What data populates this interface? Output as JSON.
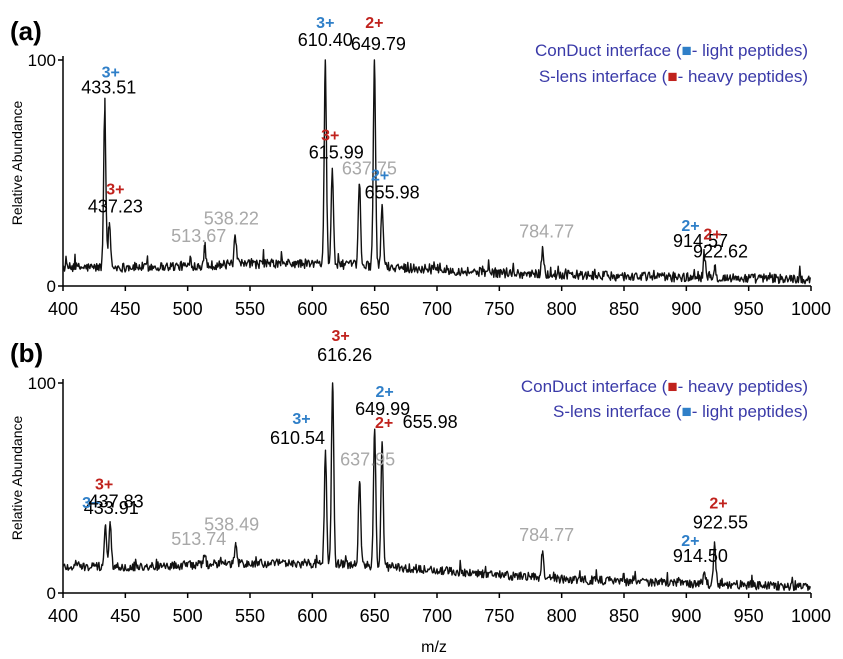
{
  "xlabel": "m/z",
  "colors": {
    "blue": "#2f7fc8",
    "red": "#c0221d",
    "gray": "#a8a8a8",
    "legend_text": "#3a3aa8",
    "trace": "#111111"
  },
  "chart_data": [
    {
      "type": "line",
      "panel_label": "(a)",
      "ylabel": "Relative Abundance",
      "xlim": [
        400,
        1000
      ],
      "ylim": [
        0,
        100
      ],
      "xticks": [
        "400",
        "450",
        "500",
        "550",
        "600",
        "650",
        "700",
        "750",
        "800",
        "850",
        "900",
        "950",
        "1000"
      ],
      "yticks": [
        "0",
        "100"
      ],
      "legend": [
        {
          "text_before": "ConDuct interface (",
          "marker_color": "#2f7fc8",
          "text_after": "- light peptides)"
        },
        {
          "text_before": "S-lens interface (",
          "marker_color": "#c0221d",
          "text_after": "- heavy peptides)"
        }
      ],
      "peaks": [
        {
          "mz": 433.51,
          "intensity": 78,
          "label": "433.51",
          "charge": "3+",
          "charge_color": "blue"
        },
        {
          "mz": 437.23,
          "intensity": 28,
          "label": "437.23",
          "charge": "3+",
          "charge_color": "red"
        },
        {
          "mz": 513.67,
          "intensity": 15,
          "label": "513.67",
          "charge": "",
          "charge_color": "gray"
        },
        {
          "mz": 538.22,
          "intensity": 22,
          "label": "538.22",
          "charge": "",
          "charge_color": "gray"
        },
        {
          "mz": 610.4,
          "intensity": 100,
          "label": "610.40",
          "charge": "3+",
          "charge_color": "blue"
        },
        {
          "mz": 615.99,
          "intensity": 52,
          "label": "615.99",
          "charge": "3+",
          "charge_color": "red"
        },
        {
          "mz": 637.75,
          "intensity": 45,
          "label": "637.75",
          "charge": "",
          "charge_color": "gray"
        },
        {
          "mz": 649.79,
          "intensity": 100,
          "label": "649.79",
          "charge": "2+",
          "charge_color": "red"
        },
        {
          "mz": 655.98,
          "intensity": 36,
          "label": "655.98",
          "charge": "2+",
          "charge_color": "blue"
        },
        {
          "mz": 784.77,
          "intensity": 17,
          "label": "784.77",
          "charge": "",
          "charge_color": "gray"
        },
        {
          "mz": 914.57,
          "intensity": 12,
          "label": "914.57",
          "charge": "2+",
          "charge_color": "blue"
        },
        {
          "mz": 922.62,
          "intensity": 9,
          "label": "922.62",
          "charge": "2+",
          "charge_color": "red"
        }
      ]
    },
    {
      "type": "line",
      "panel_label": "(b)",
      "ylabel": "Relative Abundance",
      "xlim": [
        400,
        1000
      ],
      "ylim": [
        0,
        100
      ],
      "xticks": [
        "400",
        "450",
        "500",
        "550",
        "600",
        "650",
        "700",
        "750",
        "800",
        "850",
        "900",
        "950",
        "1000"
      ],
      "yticks": [
        "0",
        "100"
      ],
      "legend": [
        {
          "text_before": "ConDuct interface (",
          "marker_color": "#c0221d",
          "text_after": "- heavy peptides)"
        },
        {
          "text_before": "S-lens interface (",
          "marker_color": "#2f7fc8",
          "text_after": "- light peptides)"
        }
      ],
      "peaks": [
        {
          "mz": 433.91,
          "intensity": 32,
          "label": "433.91",
          "charge": "3+",
          "charge_color": "blue"
        },
        {
          "mz": 437.83,
          "intensity": 33,
          "label": "437.83",
          "charge": "3+",
          "charge_color": "red"
        },
        {
          "mz": 513.74,
          "intensity": 18,
          "label": "513.74",
          "charge": "",
          "charge_color": "gray"
        },
        {
          "mz": 538.49,
          "intensity": 24,
          "label": "538.49",
          "charge": "",
          "charge_color": "gray"
        },
        {
          "mz": 610.54,
          "intensity": 68,
          "label": "610.54",
          "charge": "3+",
          "charge_color": "blue"
        },
        {
          "mz": 616.26,
          "intensity": 100,
          "label": "616.26",
          "charge": "3+",
          "charge_color": "red"
        },
        {
          "mz": 637.95,
          "intensity": 53,
          "label": "637.95",
          "charge": "",
          "charge_color": "gray"
        },
        {
          "mz": 649.99,
          "intensity": 78,
          "label": "649.99",
          "charge": "2+",
          "charge_color": "blue"
        },
        {
          "mz": 655.98,
          "intensity": 72,
          "label": "655.98",
          "charge": "2+",
          "charge_color": "red"
        },
        {
          "mz": 784.77,
          "intensity": 20,
          "label": "784.77",
          "charge": "",
          "charge_color": "gray"
        },
        {
          "mz": 914.5,
          "intensity": 10,
          "label": "914.50",
          "charge": "2+",
          "charge_color": "blue"
        },
        {
          "mz": 922.55,
          "intensity": 23,
          "label": "922.55",
          "charge": "2+",
          "charge_color": "red"
        }
      ]
    }
  ]
}
